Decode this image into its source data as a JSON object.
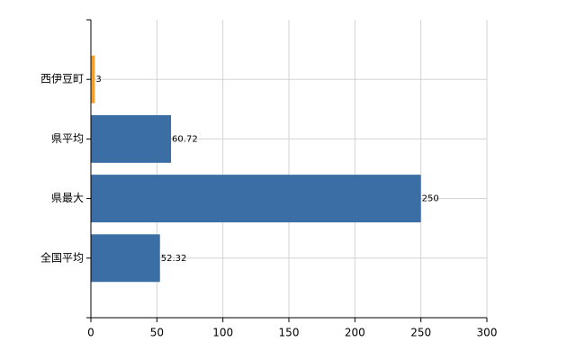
{
  "chart_data": {
    "type": "bar",
    "orientation": "horizontal",
    "categories": [
      "西伊豆町",
      "県平均",
      "県最大",
      "全国平均"
    ],
    "values": [
      3,
      60.72,
      250,
      52.32
    ],
    "colors": [
      "#f0a030",
      "#3a6ea5",
      "#3a6ea5",
      "#3a6ea5"
    ],
    "xlim": [
      0,
      300
    ],
    "xticks": [
      0,
      50,
      100,
      150,
      200,
      250,
      300
    ],
    "grid": true
  }
}
